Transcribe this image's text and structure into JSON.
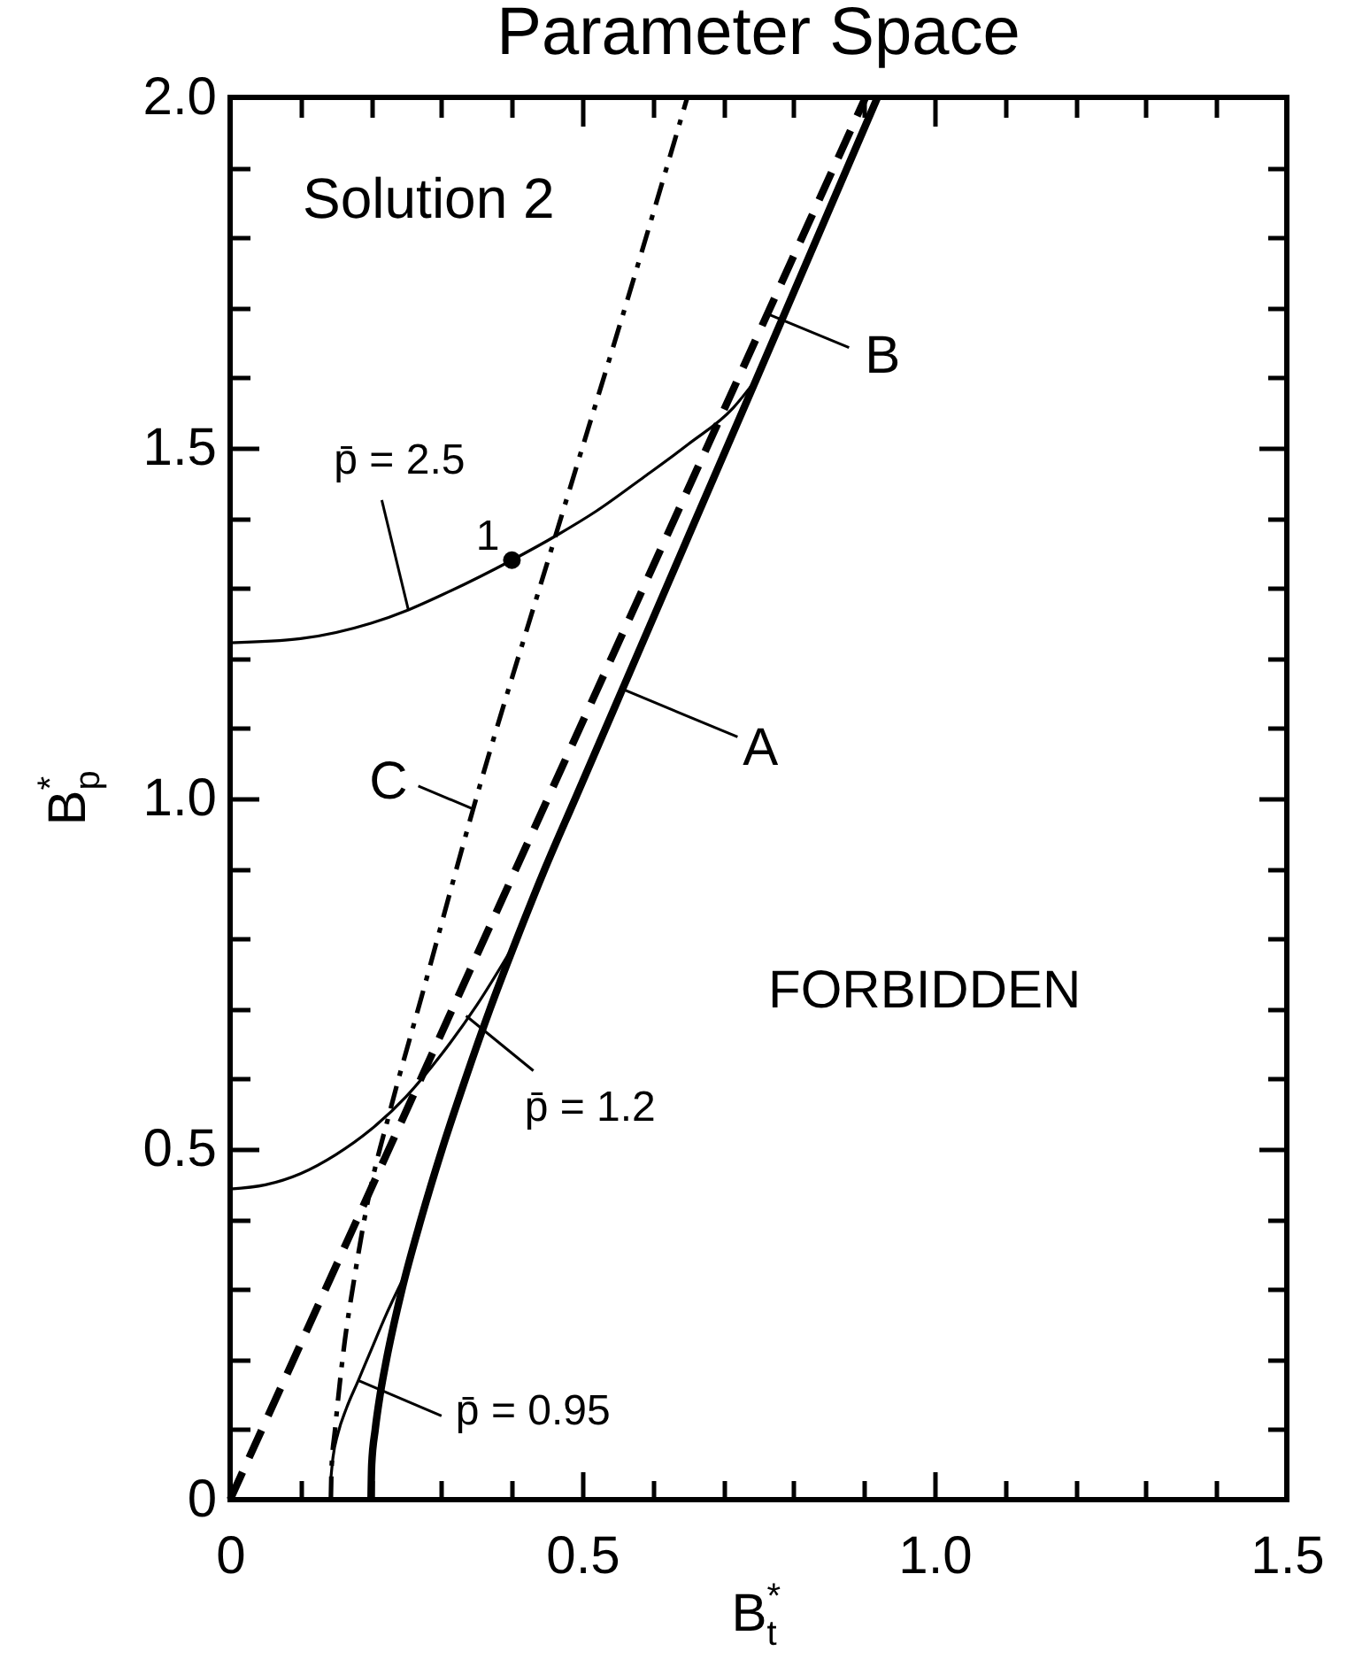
{
  "chart_data": {
    "type": "line",
    "title": "Parameter Space",
    "xlabel": "B$^{*}$$_{t}$",
    "ylabel": "B$^{*}$$_{p}$",
    "xlim": [
      0,
      1.5
    ],
    "ylim": [
      0,
      2
    ],
    "xticks": [
      0,
      {
        "value": 0.1,
        "label": null
      },
      {
        "value": 0.2,
        "label": null
      },
      {
        "value": 0.3,
        "label": null
      },
      {
        "value": 0.4,
        "label": null
      },
      0.5,
      {
        "value": 0.6,
        "label": null
      },
      {
        "value": 0.7,
        "label": null
      },
      {
        "value": 0.8,
        "label": null
      },
      {
        "value": 0.9,
        "label": null
      },
      {
        "value": 1,
        "label": "1.0"
      },
      {
        "value": 1.1,
        "label": null
      },
      {
        "value": 1.2,
        "label": null
      },
      {
        "value": 1.3,
        "label": null
      },
      {
        "value": 1.4,
        "label": null
      },
      1.5
    ],
    "yticks": [
      0,
      {
        "value": 0.1,
        "label": null
      },
      {
        "value": 0.2,
        "label": null
      },
      {
        "value": 0.3,
        "label": null
      },
      {
        "value": 0.4,
        "label": null
      },
      0.5,
      {
        "value": 0.6,
        "label": null
      },
      {
        "value": 0.7,
        "label": null
      },
      {
        "value": 0.8,
        "label": null
      },
      {
        "value": 0.9,
        "label": null
      },
      {
        "value": 1,
        "label": "1.0"
      },
      {
        "value": 1.1,
        "label": null
      },
      {
        "value": 1.2,
        "label": null
      },
      {
        "value": 1.3,
        "label": null
      },
      {
        "value": 1.4,
        "label": null
      },
      1.5,
      {
        "value": 1.6,
        "label": null
      },
      {
        "value": 1.7,
        "label": null
      },
      {
        "value": 1.8,
        "label": null
      },
      {
        "value": 1.9,
        "label": null
      },
      {
        "value": 2,
        "label": "2.0"
      }
    ],
    "series": [
      {
        "color": "#000000",
        "line_style": "solid",
        "x": [
          0.2,
          0.201,
          0.206,
          0.213,
          0.222,
          0.244,
          0.271,
          0.301,
          0.334,
          0.369,
          0.407,
          0.447,
          0.49,
          0.557,
          0.651,
          0.747,
          0.919
        ],
        "values": [
          0,
          0.05,
          0.1,
          0.15,
          0.2,
          0.3,
          0.4,
          0.5,
          0.6,
          0.7,
          0.8,
          0.9,
          1.0,
          1.156,
          1.375,
          1.598,
          2.0
        ]
      },
      {
        "color": "#000000",
        "line_style": "dashed",
        "x": [
          0,
          0.451,
          0.902
        ],
        "values": [
          0,
          1.0,
          2.0
        ]
      },
      {
        "color": "#000000",
        "line_style": "dashdot",
        "x": [
          0.143,
          0.144,
          0.149,
          0.161,
          0.177,
          0.195,
          0.229,
          0.272,
          0.345,
          0.462,
          0.577,
          0.649
        ],
        "values": [
          0,
          0.044,
          0.1,
          0.212,
          0.32,
          0.423,
          0.562,
          0.718,
          0.985,
          1.375,
          1.755,
          2.0
        ]
      },
      {
        "color": "#000000",
        "line_style": "solid",
        "x": [
          0,
          0.1,
          0.2,
          0.253,
          0.3,
          0.4,
          0.463,
          0.52,
          0.588,
          0.65,
          0.714,
          0.747
        ],
        "values": [
          1.222,
          1.228,
          1.25,
          1.269,
          1.29,
          1.34,
          1.375,
          1.41,
          1.459,
          1.505,
          1.557,
          1.598
        ]
      },
      {
        "color": "#000000",
        "line_style": "solid",
        "x": [
          0,
          0.05,
          0.1,
          0.15,
          0.2,
          0.25,
          0.3,
          0.35,
          0.407
        ],
        "values": [
          0.443,
          0.449,
          0.465,
          0.492,
          0.528,
          0.575,
          0.635,
          0.705,
          0.798
        ]
      },
      {
        "color": "#000000",
        "line_style": "solid",
        "x": [
          0.143,
          0.146,
          0.153,
          0.165,
          0.182,
          0.2,
          0.222,
          0.249
        ],
        "values": [
          0.03,
          0.06,
          0.094,
          0.13,
          0.17,
          0.213,
          0.265,
          0.322
        ]
      },
      {
        "type": "scatter",
        "color": "#000000",
        "marker": "circle",
        "x": [
          0.4
        ],
        "values": [
          1.34
        ]
      }
    ],
    "annotations": [
      "Solution 2",
      "FORBIDDEN",
      {
        "text": "p̄ = 2.5",
        "x": 0.253,
        "y": 1.269
      },
      {
        "text": "1",
        "x": 0.4,
        "y": 1.34
      },
      {
        "text": "B",
        "x": 0.763,
        "y": 1.691
      },
      {
        "text": "A",
        "x": 0.557,
        "y": 1.156
      },
      {
        "text": "C",
        "x": 0.345,
        "y": 0.985
      },
      {
        "text": "p̄ = 1.2",
        "x": 0.335,
        "y": 0.69
      },
      {
        "text": "p̄ = 0.95",
        "x": 0.182,
        "y": 0.17
      }
    ]
  }
}
